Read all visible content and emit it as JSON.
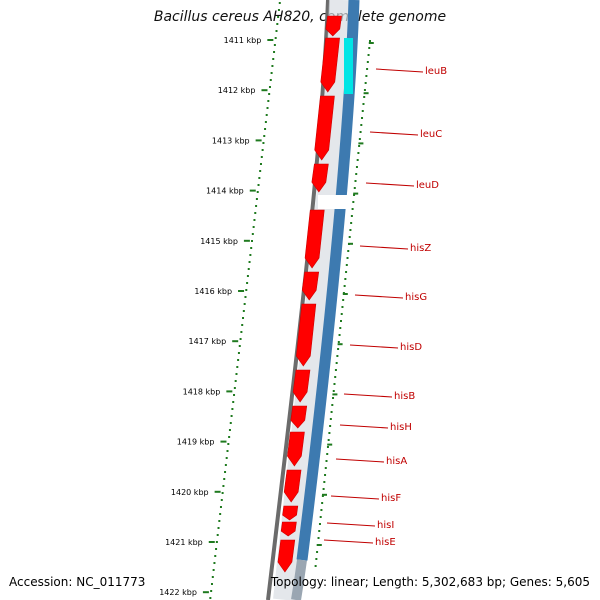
{
  "title": "Bacillus cereus AH820, complete genome",
  "accession": "Accession: NC_011773",
  "topology": "Topology: linear; Length: 5,302,683 bp; Genes: 5,605",
  "ruler": {
    "ticks": [
      "1411 kbp",
      "1412 kbp",
      "1413 kbp",
      "1414 kbp",
      "1415 kbp",
      "1416 kbp",
      "1417 kbp",
      "1418 kbp",
      "1419 kbp",
      "1420 kbp",
      "1421 kbp",
      "1422 kbp"
    ]
  },
  "genes": [
    "leuB",
    "leuC",
    "leuD",
    "hisZ",
    "hisG",
    "hisD",
    "hisB",
    "hisH",
    "hisA",
    "hisF",
    "hisI",
    "hisE"
  ],
  "colors": {
    "gene_red": "#ff0000",
    "cds_blue": "#3d7ab0",
    "highlight_cyan": "#00e5e5",
    "backbone": "#6b6b6b",
    "ruler_green": "#1f7a1f",
    "label_red": "#c00000"
  }
}
